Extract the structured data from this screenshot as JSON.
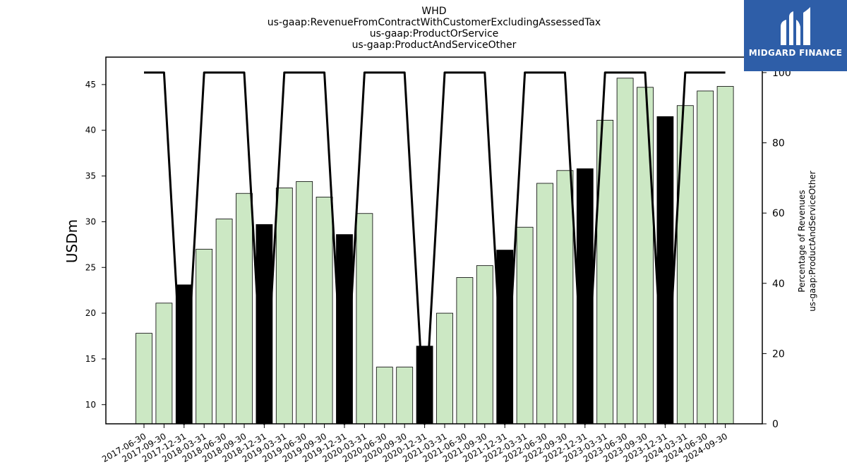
{
  "header": {
    "title_lines": [
      "WHD",
      "us-gaap:RevenueFromContractWithCustomerExcludingAssessedTax",
      "us-gaap:ProductOrService",
      "us-gaap:ProductAndServiceOther"
    ]
  },
  "logo": {
    "text": "MIDGARD FINANCE",
    "icon": "midgard-logo-icon",
    "bg_color": "#2e5ea8"
  },
  "colors": {
    "bar_default": "#cce8c4",
    "bar_highlight": "#000000",
    "line": "#000000"
  },
  "chart_data": {
    "type": "bar",
    "ylabel": "USDm",
    "y2label_lines": [
      "Percentage of Revenues",
      "us-gaap:ProductAndServiceOther"
    ],
    "ylim": [
      7.9,
      48.0
    ],
    "y2lim": [
      0,
      104.4
    ],
    "yticks": [
      10,
      15,
      20,
      25,
      30,
      35,
      40,
      45
    ],
    "y2ticks": [
      0,
      20,
      40,
      60,
      80,
      100
    ],
    "categories": [
      "2017-06-30",
      "2017-09-30",
      "2017-12-31",
      "2018-03-31",
      "2018-06-30",
      "2018-09-30",
      "2018-12-31",
      "2019-03-31",
      "2019-06-30",
      "2019-09-30",
      "2019-12-31",
      "2020-03-31",
      "2020-06-30",
      "2020-09-30",
      "2020-12-31",
      "2021-03-31",
      "2021-06-30",
      "2021-09-30",
      "2021-12-31",
      "2022-03-31",
      "2022-06-30",
      "2022-09-30",
      "2022-12-31",
      "2023-03-31",
      "2023-06-30",
      "2023-09-30",
      "2023-12-31",
      "2024-03-31",
      "2024-06-30",
      "2024-09-30"
    ],
    "series": [
      {
        "kind": "bar",
        "values": [
          17.8,
          21.1,
          23.1,
          27.0,
          30.3,
          33.1,
          29.7,
          33.7,
          34.4,
          32.7,
          28.6,
          30.9,
          14.1,
          14.1,
          16.4,
          20.0,
          23.9,
          25.2,
          26.9,
          29.4,
          34.2,
          35.6,
          35.8,
          41.1,
          45.7,
          44.7,
          41.5,
          42.7,
          44.3,
          44.8
        ],
        "highlighted": [
          false,
          false,
          true,
          false,
          false,
          false,
          true,
          false,
          false,
          false,
          true,
          false,
          false,
          false,
          true,
          false,
          false,
          false,
          true,
          false,
          false,
          false,
          true,
          false,
          false,
          false,
          true,
          false,
          false,
          false
        ]
      },
      {
        "kind": "line",
        "axis": "right",
        "values": [
          100,
          100,
          0,
          100,
          100,
          100,
          0,
          100,
          100,
          100,
          0,
          100,
          100,
          100,
          0,
          100,
          100,
          100,
          0,
          100,
          100,
          100,
          0,
          100,
          100,
          100,
          0,
          100,
          100,
          100
        ]
      }
    ],
    "grid": false
  }
}
